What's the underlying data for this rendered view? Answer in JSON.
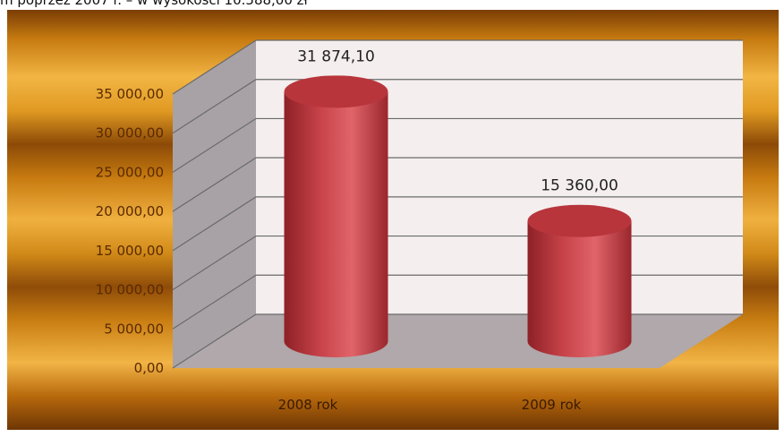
{
  "caption_fragment": "m poprzez 2007 r. – w wysokości 10.588,00 zł",
  "colors": {
    "bar": "#c8434a",
    "back_wall": "#f4eeee",
    "side_wall": "#a8a2a6",
    "floor": "#b0a8aa",
    "gridline": "#6a6a6a",
    "frame": "#d8901c"
  },
  "chart_data": {
    "type": "bar",
    "style": "3d-cylinder",
    "categories": [
      "2008 rok",
      "2009 rok"
    ],
    "values": [
      31874.1,
      15360.0
    ],
    "data_labels": [
      "31 874,10",
      "15 360,00"
    ],
    "ylim": [
      0,
      35000
    ],
    "yticks": [
      0,
      5000,
      10000,
      15000,
      20000,
      25000,
      30000,
      35000
    ],
    "ytick_labels": [
      "0,00",
      "5 000,00",
      "10 000,00",
      "15 000,00",
      "20 000,00",
      "25 000,00",
      "30 000,00",
      "35 000,00"
    ],
    "grid": true,
    "legend": "none"
  }
}
